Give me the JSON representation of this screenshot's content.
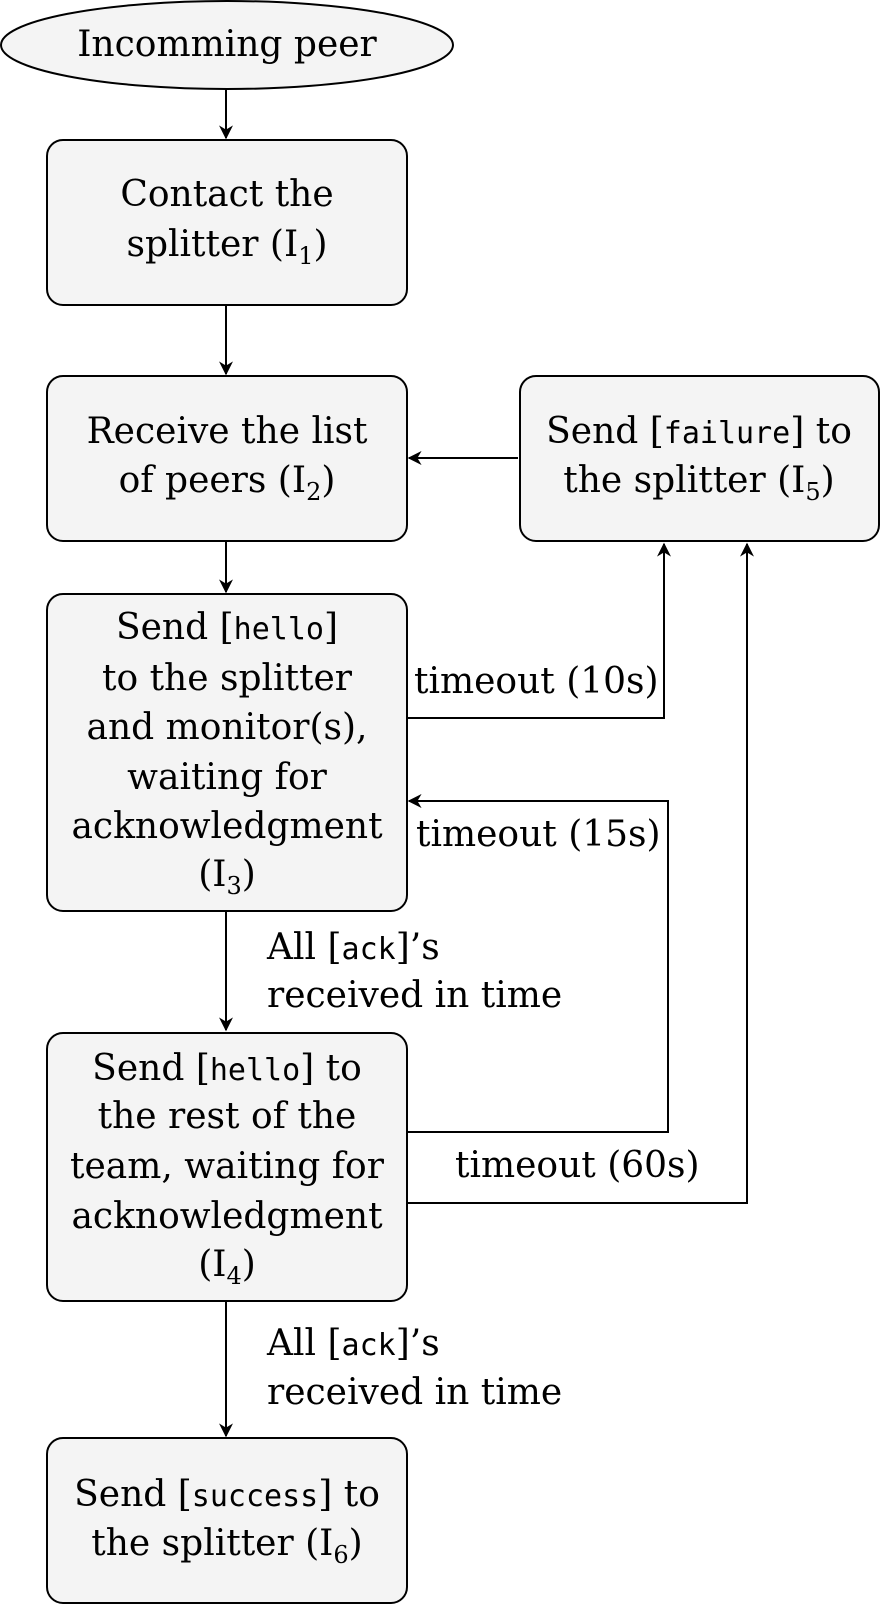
{
  "nodes": {
    "start": {
      "text": "Incomming peer"
    },
    "i1": {
      "line1": "Contact the",
      "line2_pre": "splitter (I",
      "sub": "1",
      "line2_post": ")"
    },
    "i2": {
      "line1": "Receive the list",
      "line2_pre": "of peers (I",
      "sub": "2",
      "line2_post": ")"
    },
    "i5": {
      "l1_pre": "Send [",
      "l1_code": "failure",
      "l1_post": "] to",
      "line2_pre": "the splitter (I",
      "sub": "5",
      "line2_post": ")"
    },
    "i3": {
      "l1_pre": "Send [",
      "l1_code": "hello",
      "l1_post": "]",
      "line2": "to the splitter",
      "line3": "and monitor(s),",
      "line4": "waiting for",
      "line5": "acknowledgment",
      "line6_pre": "(I",
      "sub": "3",
      "line6_post": ")"
    },
    "i4": {
      "l1_pre": "Send [",
      "l1_code": "hello",
      "l1_post": "] to",
      "line2": "the rest of the",
      "line3": "team, waiting for",
      "line4": "acknowledgment",
      "line5_pre": "(I",
      "sub": "4",
      "line5_post": ")"
    },
    "i6": {
      "l1_pre": "Send [",
      "l1_code": "success",
      "l1_post": "] to",
      "line2_pre": "the splitter (I",
      "sub": "6",
      "line2_post": ")"
    }
  },
  "edges": {
    "i3_to_i4": {
      "l1_pre": "All [",
      "l1_code": "ack",
      "l1_post": "]’s",
      "line2": "received in time"
    },
    "i4_to_i6": {
      "l1_pre": "All [",
      "l1_code": "ack",
      "l1_post": "]’s",
      "line2": "received in time"
    },
    "timeout_10": "timeout (10s)",
    "timeout_15": "timeout (15s)",
    "timeout_60": "timeout (60s)"
  }
}
